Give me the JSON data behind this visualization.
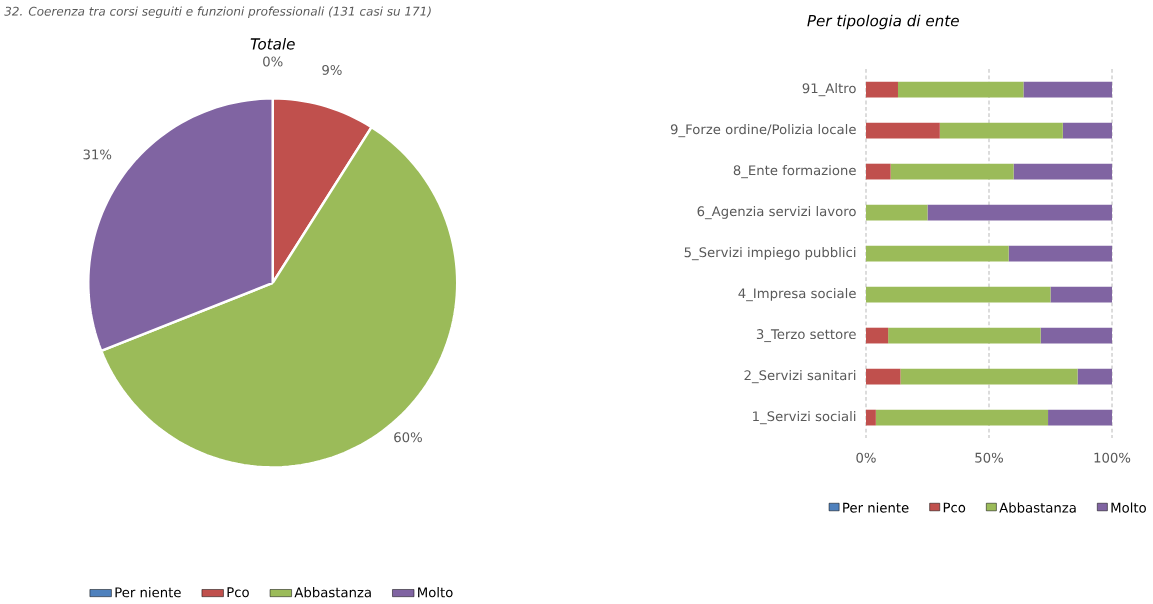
{
  "chart_data": [
    {
      "type": "pie",
      "title": "Totale",
      "annotations": [
        "32. Coerenza tra corsi seguiti e funzioni professionali (131 casi su 171)"
      ],
      "categories": [
        "Per niente",
        "Pco",
        "Abbastanza",
        "Molto"
      ],
      "values": [
        0,
        9,
        60,
        31
      ],
      "colors": [
        "#4f81bd",
        "#c0504d",
        "#9bbb59",
        "#8064a2"
      ],
      "value_labels": [
        "0%",
        "9%",
        "60%",
        "31%"
      ],
      "legend": "bottom"
    },
    {
      "type": "bar",
      "orientation": "horizontal",
      "stacked": true,
      "title": "Per tipologia di ente",
      "categories": [
        "91_Altro",
        "9_Forze ordine/Polizia locale",
        "8_Ente formazione",
        "6_Agenzia servizi lavoro",
        "5_Servizi impiego pubblici",
        "4_Impresa sociale",
        "3_Terzo settore",
        "2_Servizi sanitari",
        "1_Servizi sociali"
      ],
      "series": [
        {
          "name": "Per niente",
          "color": "#4f81bd",
          "values": [
            0,
            0,
            0,
            0,
            0,
            0,
            0,
            0,
            0
          ]
        },
        {
          "name": "Pco",
          "color": "#c0504d",
          "values": [
            13,
            30,
            10,
            0,
            0,
            0,
            9,
            14,
            4
          ]
        },
        {
          "name": "Abbastanza",
          "color": "#9bbb59",
          "values": [
            51,
            50,
            50,
            25,
            58,
            75,
            62,
            72,
            70
          ]
        },
        {
          "name": "Molto",
          "color": "#8064a2",
          "values": [
            36,
            20,
            40,
            75,
            42,
            25,
            29,
            14,
            26
          ]
        }
      ],
      "xlim": [
        0,
        100
      ],
      "xticks": [
        {
          "value": 0,
          "label": "0%"
        },
        {
          "value": 50,
          "label": "50%"
        },
        {
          "value": 100,
          "label": "100%"
        }
      ],
      "grid": "x",
      "legend": "bottom"
    }
  ]
}
